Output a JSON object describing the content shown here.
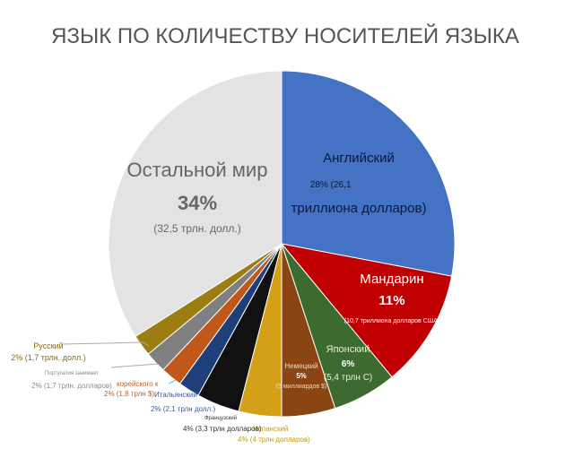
{
  "chart_data": {
    "type": "pie",
    "title": "ЯЗЫК ПО КОЛИЧЕСТВУ НОСИТЕЛЕЙ ЯЗЫКА",
    "slices": [
      {
        "key": "english",
        "value": 28,
        "color": "#4472c4",
        "lines": [
          "Английский",
          "28% (26,1 ",
          "триллиона долларов)"
        ]
      },
      {
        "key": "mandarin",
        "value": 11,
        "color": "#c00000",
        "lines": [
          "Мандарин",
          "11%",
          "(10,7 триллиона долларов США)"
        ]
      },
      {
        "key": "japanese",
        "value": 6,
        "color": "#3d6b2f",
        "lines": [
          "Японский",
          "6%",
          "(5,4 трлн С)"
        ]
      },
      {
        "key": "german",
        "value": 5,
        "color": "#8b4513",
        "lines": [
          "Немецкий",
          "5%",
          "(5 миллиардов $)"
        ]
      },
      {
        "key": "spanish",
        "value": 4,
        "color": "#d4a017",
        "lines": [
          "Испанский",
          "4% (4 трлн долларов)"
        ]
      },
      {
        "key": "french",
        "value": 4,
        "color": "#111111",
        "lines": [
          "Французский",
          "4% (3,3 трлн долларов)"
        ]
      },
      {
        "key": "italian",
        "value": 2,
        "color": "#1f3f7a",
        "lines": [
          "Итальянский",
          "2% (2,1 трлн долл.)"
        ]
      },
      {
        "key": "korean",
        "value": 2,
        "color": "#c0581a",
        "lines": [
          "корейского к",
          "2% (1,8 трлн $)"
        ]
      },
      {
        "key": "portuguese",
        "value": 2,
        "color": "#808080",
        "lines": [
          "Португалия занимает",
          "2% (1,7 трлн. долларов)"
        ]
      },
      {
        "key": "russian",
        "value": 2,
        "color": "#9c7d12",
        "lines": [
          "Русский",
          "2% (1,7 трлн. долл.)"
        ]
      },
      {
        "key": "rest",
        "value": 34,
        "color": "#e3e3e3",
        "lines": [
          "Остальной мир",
          "34%",
          "(32,5 трлн. долл.)"
        ]
      }
    ]
  }
}
